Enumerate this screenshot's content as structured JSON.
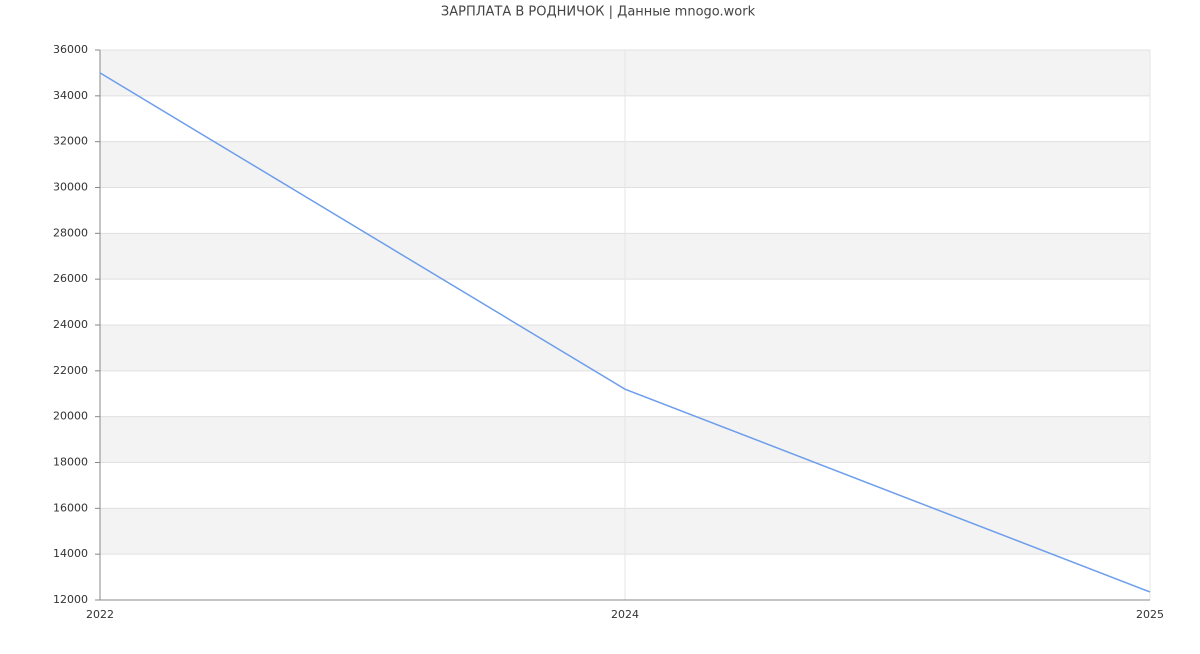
{
  "chart_data": {
    "type": "line",
    "title": "ЗАРПЛАТА В РОДНИЧОК | Данные mnogo.work",
    "categories": [
      "2022",
      "2024",
      "2025"
    ],
    "values": [
      35000,
      21200,
      12350
    ],
    "color": "#6d9eeb",
    "ylim": [
      12000,
      36000
    ],
    "yticks": [
      12000,
      14000,
      16000,
      18000,
      20000,
      22000,
      24000,
      26000,
      28000,
      30000,
      32000,
      34000,
      36000
    ],
    "grid": true
  }
}
